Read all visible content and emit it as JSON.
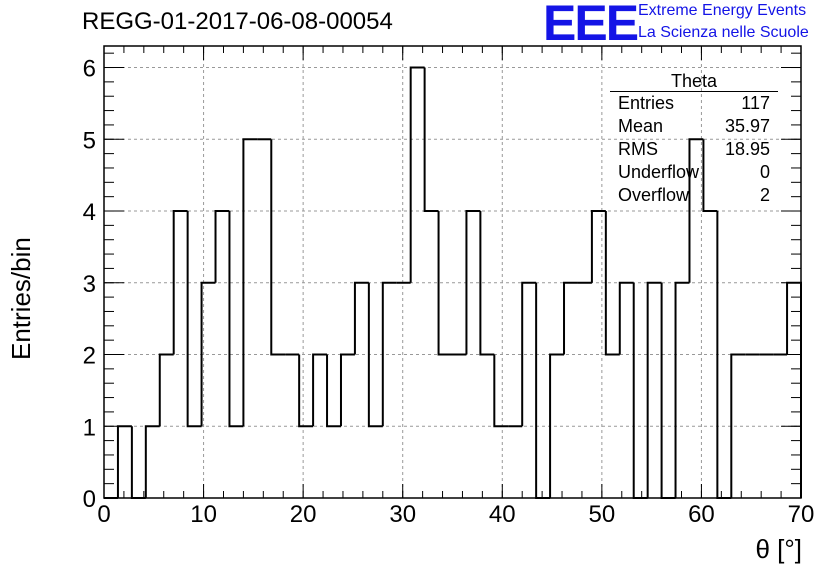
{
  "chart_data": {
    "type": "bar",
    "title": "REGG-01-2017-06-08-00054",
    "xlabel": "θ [°]",
    "ylabel": "Entries/bin",
    "xlim": [
      0,
      70
    ],
    "ylim": [
      0,
      6.3
    ],
    "grid": true,
    "bin_width": 1.4,
    "x_ticks": [
      "0",
      "10",
      "20",
      "30",
      "40",
      "50",
      "60",
      "70"
    ],
    "y_ticks": [
      "0",
      "1",
      "2",
      "3",
      "4",
      "5",
      "6"
    ],
    "values": [
      0,
      1,
      0,
      1,
      2,
      4,
      1,
      3,
      4,
      1,
      5,
      5,
      2,
      2,
      1,
      2,
      1,
      2,
      3,
      1,
      3,
      3,
      6,
      4,
      2,
      2,
      4,
      2,
      1,
      1,
      3,
      0,
      2,
      3,
      3,
      4,
      2,
      3,
      0,
      3,
      0,
      3,
      5,
      4,
      0,
      2,
      2,
      2,
      2,
      3
    ]
  },
  "stats_box": {
    "name": "Theta",
    "rows": [
      {
        "label": "Entries",
        "value": "117"
      },
      {
        "label": "Mean",
        "value": "35.97"
      },
      {
        "label": "RMS",
        "value": "18.95"
      },
      {
        "label": "Underflow",
        "value": "0"
      },
      {
        "label": "Overflow",
        "value": "2"
      }
    ]
  },
  "logo": {
    "text": "EEE",
    "line1": "Extreme Energy Events",
    "line2": "La Scienza nelle Scuole",
    "color": "#1414e6"
  }
}
